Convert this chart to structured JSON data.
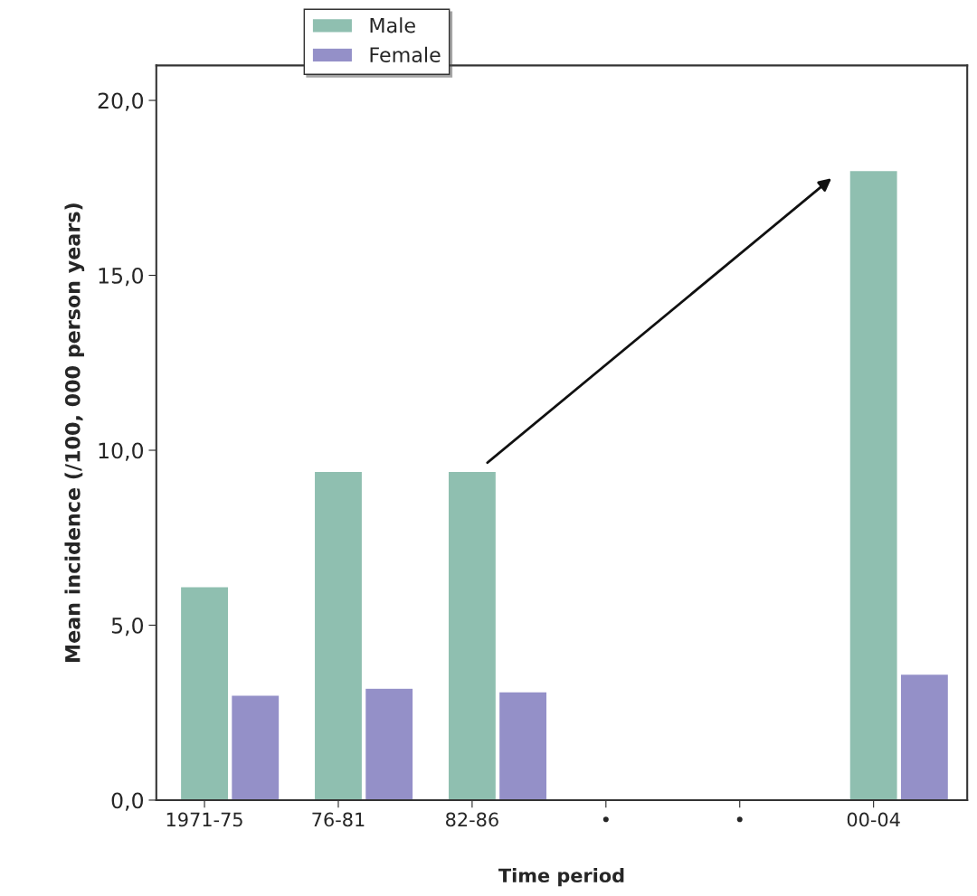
{
  "chart_data": {
    "type": "bar",
    "xlabel": "Time period",
    "ylabel": "Mean incidence (/100, 000 person years)",
    "categories": [
      "1971-75",
      "76-81",
      "82-86",
      "•",
      "•",
      "00-04"
    ],
    "series": [
      {
        "name": "Male",
        "color": "#8fbfb0",
        "values": [
          6.1,
          9.4,
          9.4,
          null,
          null,
          18.0
        ]
      },
      {
        "name": "Female",
        "color": "#9490c8",
        "values": [
          3.0,
          3.2,
          3.1,
          null,
          null,
          3.6
        ]
      }
    ],
    "ylim": [
      0,
      21
    ],
    "yticks": [
      {
        "value": 0,
        "label": "0,0"
      },
      {
        "value": 5,
        "label": "5,0"
      },
      {
        "value": 10,
        "label": "10,0"
      },
      {
        "value": 15,
        "label": "15,0"
      },
      {
        "value": 20,
        "label": "20,0"
      }
    ],
    "grid": false,
    "legend": "top left"
  }
}
